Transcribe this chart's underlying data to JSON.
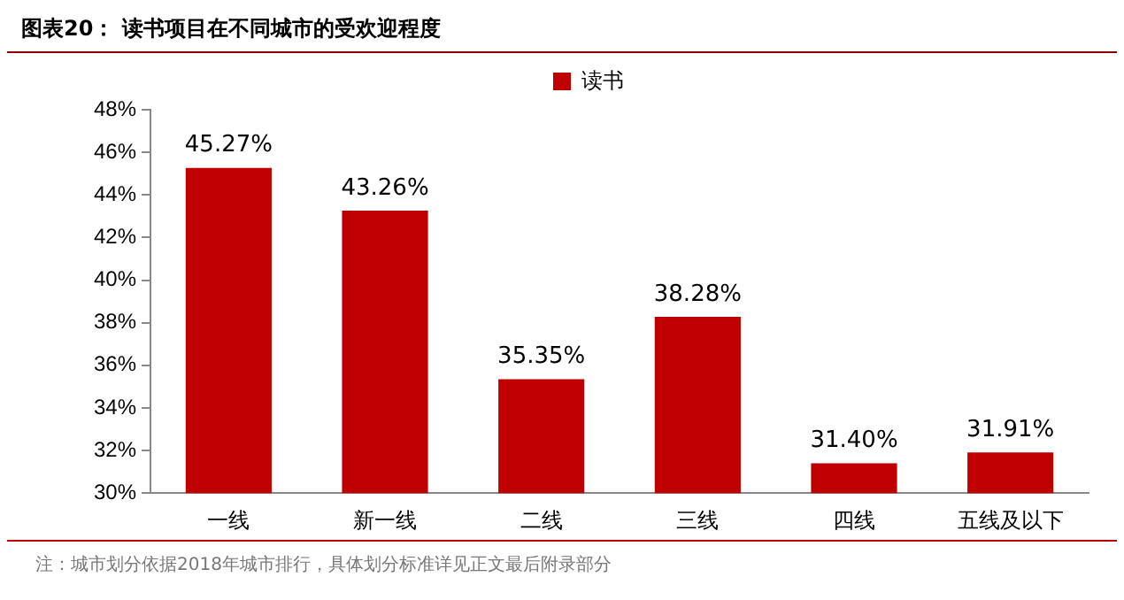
{
  "chart_data": {
    "type": "bar",
    "title": "图表20：  读书项目在不同城市的受欢迎程度",
    "categories": [
      "一线",
      "新一线",
      "二线",
      "三线",
      "四线",
      "五线及以下"
    ],
    "series": [
      {
        "name": "读书",
        "color": "#c00000",
        "values": [
          45.27,
          43.26,
          35.35,
          38.28,
          31.4,
          31.91
        ],
        "value_labels": [
          "45.27%",
          "43.26%",
          "35.35%",
          "38.28%",
          "31.40%",
          "31.91%"
        ]
      }
    ],
    "ylim": [
      30,
      48
    ],
    "yticks": [
      {
        "value": 30,
        "label": "30%"
      },
      {
        "value": 32,
        "label": "32%"
      },
      {
        "value": 34,
        "label": "34%"
      },
      {
        "value": 36,
        "label": "36%"
      },
      {
        "value": 38,
        "label": "38%"
      },
      {
        "value": 40,
        "label": "40%"
      },
      {
        "value": 42,
        "label": "42%"
      },
      {
        "value": 44,
        "label": "44%"
      },
      {
        "value": 46,
        "label": "46%"
      },
      {
        "value": 48,
        "label": "48%"
      }
    ],
    "grid": false,
    "legend": "top",
    "annotations": [
      "注：城市划分依据2018年城市排行，具体划分标准详见正文最后附录部分"
    ]
  }
}
